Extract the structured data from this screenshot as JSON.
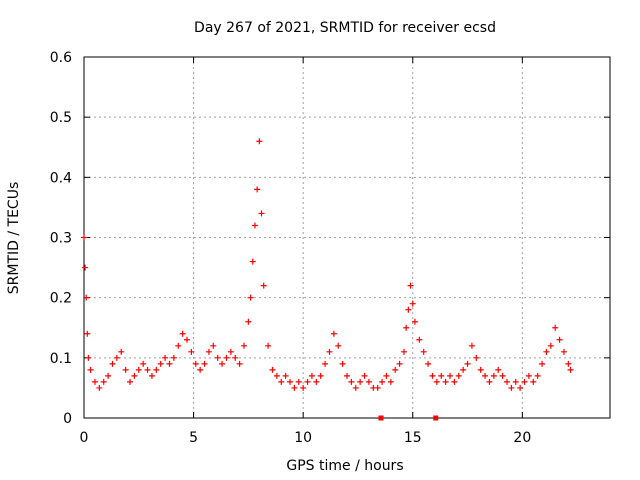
{
  "chart_data": {
    "type": "scatter",
    "title": "Day 267 of 2021, SRMTID for receiver ecsd",
    "xlabel": "GPS time / hours",
    "ylabel": "SRMTID / TECUs",
    "xlim": [
      0,
      24
    ],
    "ylim": [
      0,
      0.6
    ],
    "x_ticks": [
      0,
      5,
      10,
      15,
      20
    ],
    "y_ticks": [
      0,
      0.1,
      0.2,
      0.3,
      0.4,
      0.5,
      0.6
    ],
    "y_tick_labels": [
      "0",
      "0.1",
      "0.2",
      "0.3",
      "0.4",
      "0.5",
      "0.6"
    ],
    "grid": true,
    "marker": "+",
    "color": "#ff0000",
    "series_name": "SRMTID",
    "x": [
      0.0,
      0.05,
      0.1,
      0.15,
      0.2,
      0.3,
      0.5,
      0.7,
      0.9,
      1.1,
      1.3,
      1.5,
      1.7,
      1.9,
      2.1,
      2.3,
      2.5,
      2.7,
      2.9,
      3.1,
      3.3,
      3.5,
      3.7,
      3.9,
      4.1,
      4.3,
      4.5,
      4.7,
      4.9,
      5.1,
      5.3,
      5.5,
      5.7,
      5.9,
      6.1,
      6.3,
      6.5,
      6.7,
      6.9,
      7.1,
      7.3,
      7.5,
      7.6,
      7.7,
      7.8,
      7.9,
      8.0,
      8.1,
      8.2,
      8.4,
      8.6,
      8.8,
      9.0,
      9.2,
      9.4,
      9.6,
      9.8,
      10.0,
      10.2,
      10.4,
      10.6,
      10.8,
      11.0,
      11.2,
      11.4,
      11.6,
      11.8,
      12.0,
      12.2,
      12.4,
      12.6,
      12.8,
      13.0,
      13.2,
      13.4,
      13.6,
      13.8,
      14.0,
      14.2,
      14.4,
      14.6,
      14.7,
      14.8,
      14.9,
      15.0,
      15.1,
      15.3,
      15.5,
      15.7,
      15.9,
      16.1,
      16.3,
      16.5,
      16.7,
      16.9,
      17.1,
      17.3,
      17.5,
      17.7,
      17.9,
      18.1,
      18.3,
      18.5,
      18.7,
      18.9,
      19.1,
      19.3,
      19.5,
      19.7,
      19.9,
      20.1,
      20.3,
      20.5,
      20.7,
      20.9,
      21.1,
      21.3,
      21.5,
      21.7,
      21.9,
      22.1,
      22.2
    ],
    "y": [
      0.3,
      0.25,
      0.2,
      0.14,
      0.1,
      0.08,
      0.06,
      0.05,
      0.06,
      0.07,
      0.09,
      0.1,
      0.11,
      0.08,
      0.06,
      0.07,
      0.08,
      0.09,
      0.08,
      0.07,
      0.08,
      0.09,
      0.1,
      0.09,
      0.1,
      0.12,
      0.14,
      0.13,
      0.11,
      0.09,
      0.08,
      0.09,
      0.11,
      0.12,
      0.1,
      0.09,
      0.1,
      0.11,
      0.1,
      0.09,
      0.12,
      0.16,
      0.2,
      0.26,
      0.32,
      0.38,
      0.46,
      0.34,
      0.22,
      0.12,
      0.08,
      0.07,
      0.06,
      0.07,
      0.06,
      0.05,
      0.06,
      0.05,
      0.06,
      0.07,
      0.06,
      0.07,
      0.09,
      0.11,
      0.14,
      0.12,
      0.09,
      0.07,
      0.06,
      0.05,
      0.06,
      0.07,
      0.06,
      0.05,
      0.05,
      0.06,
      0.07,
      0.06,
      0.08,
      0.09,
      0.11,
      0.15,
      0.18,
      0.22,
      0.19,
      0.16,
      0.13,
      0.11,
      0.09,
      0.07,
      0.06,
      0.07,
      0.06,
      0.07,
      0.06,
      0.07,
      0.08,
      0.09,
      0.12,
      0.1,
      0.08,
      0.07,
      0.06,
      0.07,
      0.08,
      0.07,
      0.06,
      0.05,
      0.06,
      0.05,
      0.06,
      0.07,
      0.06,
      0.07,
      0.09,
      0.11,
      0.12,
      0.15,
      0.13,
      0.11,
      0.09,
      0.08
    ],
    "annotations": [
      {
        "x": 13.55,
        "y": 0,
        "type": "square-marker"
      },
      {
        "x": 16.05,
        "y": 0,
        "type": "square-marker"
      }
    ]
  }
}
